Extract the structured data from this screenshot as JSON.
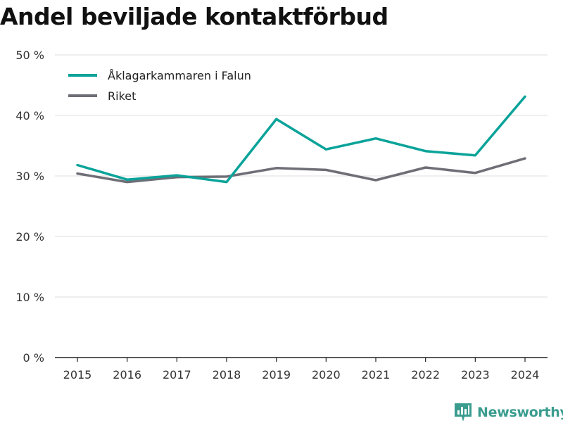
{
  "title": "Andel beviljade kontaktförbud",
  "brand": {
    "name": "Newsworthy",
    "logo_icon": "newsworthy-logo-icon"
  },
  "colors": {
    "falun": "#0aa39a",
    "riket": "#6e6e76",
    "grid": "#dddddd",
    "axis": "#222222"
  },
  "chart_data": {
    "type": "line",
    "title": "Andel beviljade kontaktförbud",
    "xlabel": "",
    "ylabel": "",
    "x": [
      "2015",
      "2016",
      "2017",
      "2018",
      "2019",
      "2020",
      "2021",
      "2022",
      "2023",
      "2024"
    ],
    "y_ticks": [
      "0 %",
      "10 %",
      "20 %",
      "30 %",
      "40 %",
      "50 %"
    ],
    "ylim": [
      0,
      50
    ],
    "grid": true,
    "legend_position": "top-left",
    "series": [
      {
        "name": "Åklagarkammaren i Falun",
        "color": "#0aa39a",
        "values": [
          31.8,
          29.4,
          30.1,
          29.0,
          39.4,
          34.4,
          36.2,
          34.1,
          33.4,
          43.1
        ]
      },
      {
        "name": "Riket",
        "color": "#6e6e76",
        "values": [
          30.4,
          29.0,
          29.8,
          29.9,
          31.3,
          31.0,
          29.3,
          31.4,
          30.5,
          32.9
        ]
      }
    ]
  }
}
